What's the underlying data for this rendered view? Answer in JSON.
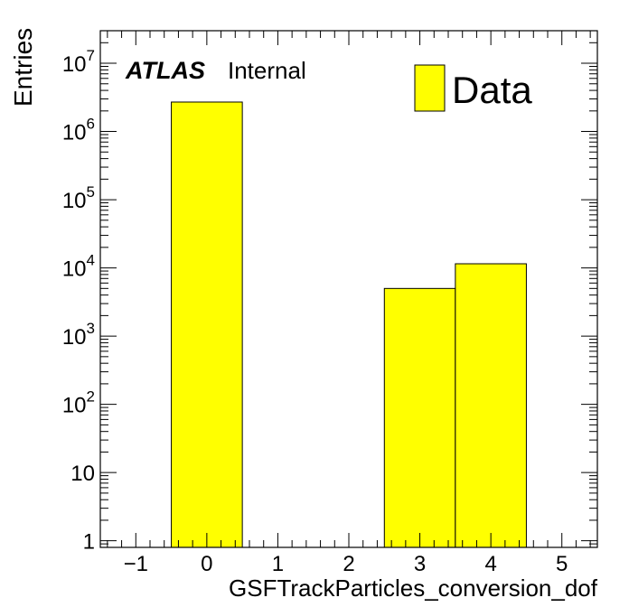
{
  "chart_data": {
    "type": "bar",
    "xlabel": "GSFTrackParticles_conversion_dof",
    "ylabel": "Entries",
    "yscale": "log",
    "xlim": [
      -1.5,
      5.5
    ],
    "ylim": [
      0.8,
      30000000
    ],
    "x_ticks": [
      {
        "value": -1,
        "label": "−1"
      },
      {
        "value": 0,
        "label": "0"
      },
      {
        "value": 1,
        "label": "1"
      },
      {
        "value": 2,
        "label": "2"
      },
      {
        "value": 3,
        "label": "3"
      },
      {
        "value": 4,
        "label": "4"
      },
      {
        "value": 5,
        "label": "5"
      }
    ],
    "y_ticks": [
      {
        "value": 1,
        "base": "1",
        "exp": ""
      },
      {
        "value": 10,
        "base": "10",
        "exp": ""
      },
      {
        "value": 100,
        "base": "10",
        "exp": "2"
      },
      {
        "value": 1000,
        "base": "10",
        "exp": "3"
      },
      {
        "value": 10000,
        "base": "10",
        "exp": "4"
      },
      {
        "value": 100000,
        "base": "10",
        "exp": "5"
      },
      {
        "value": 1000000,
        "base": "10",
        "exp": "6"
      },
      {
        "value": 10000000,
        "base": "10",
        "exp": "7"
      }
    ],
    "series": [
      {
        "name": "Data",
        "color": "#ffff00",
        "bins": [
          {
            "x_low": -0.5,
            "x_high": 0.5,
            "value": 2700000
          },
          {
            "x_low": 2.5,
            "x_high": 3.5,
            "value": 5000
          },
          {
            "x_low": 3.5,
            "x_high": 4.5,
            "value": 11500
          }
        ]
      }
    ],
    "legend": {
      "position": "top-right",
      "entries": [
        "Data"
      ]
    },
    "annotation": {
      "experiment": "ATLAS",
      "status": "Internal"
    }
  }
}
